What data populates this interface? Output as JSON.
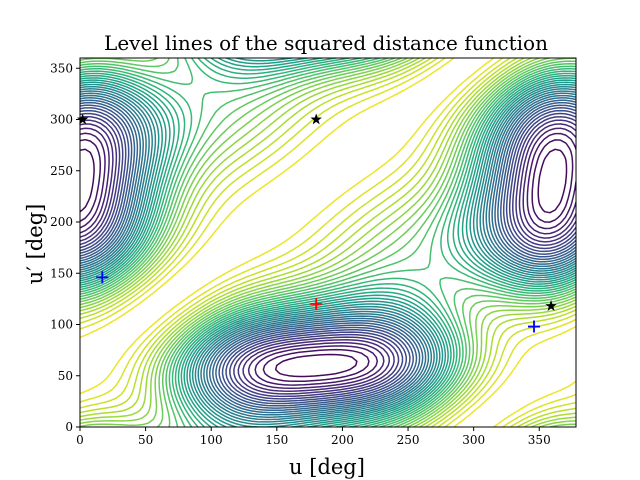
{
  "chart_data": {
    "type": "contour",
    "title": "Level lines of the squared distance function",
    "xlabel": "u [deg]",
    "ylabel": "u′ [deg]",
    "xlim": [
      0,
      378
    ],
    "ylim": [
      0,
      360
    ],
    "xticks": [
      0,
      50,
      100,
      150,
      200,
      250,
      300,
      350
    ],
    "yticks": [
      0,
      50,
      100,
      150,
      200,
      250,
      300,
      350
    ],
    "colormap": "viridis",
    "n_levels": 40,
    "field": "squared distance between two points on a closed curve parametrized by u and u′ (degrees)",
    "markers": [
      {
        "symbol": "plus",
        "color": "#ff0000",
        "x": 180,
        "y": 120
      },
      {
        "symbol": "plus",
        "color": "#0000ff",
        "x": 17,
        "y": 146
      },
      {
        "symbol": "plus",
        "color": "#0000ff",
        "x": 346,
        "y": 98
      },
      {
        "symbol": "star",
        "color": "#000000",
        "x": 2,
        "y": 300
      },
      {
        "symbol": "star",
        "color": "#000000",
        "x": 180,
        "y": 300
      },
      {
        "symbol": "star",
        "color": "#000000",
        "x": 359,
        "y": 118
      }
    ]
  }
}
